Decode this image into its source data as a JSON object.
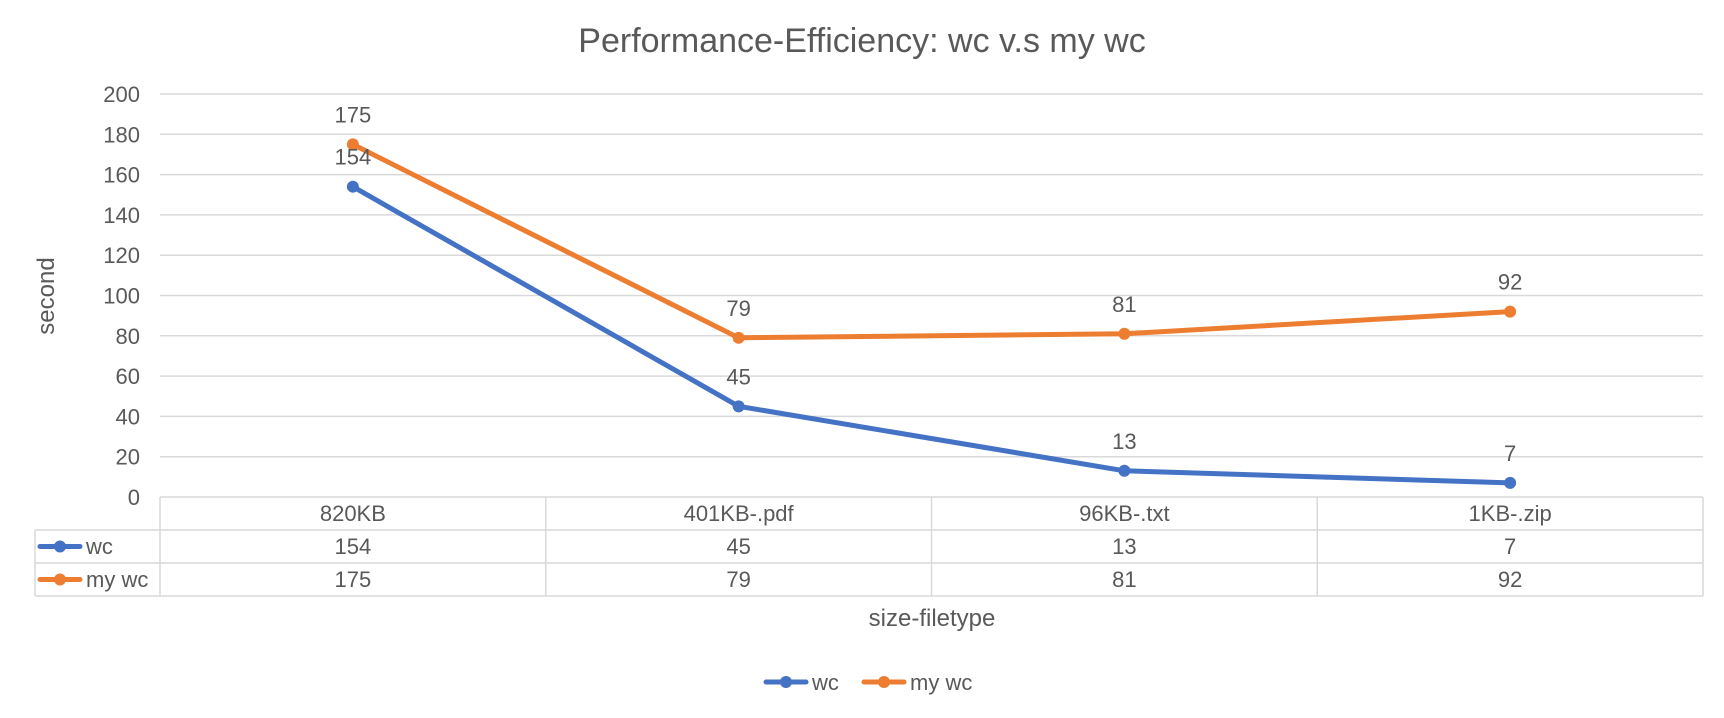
{
  "chart_data": {
    "type": "line",
    "title": "Performance-Efficiency: wc v.s my wc",
    "xlabel": "size-filetype",
    "ylabel": "second",
    "categories": [
      "820KB",
      "401KB-.pdf",
      "96KB-.txt",
      "1KB-.zip"
    ],
    "ylim": [
      0,
      200
    ],
    "yticks": [
      0,
      20,
      40,
      60,
      80,
      100,
      120,
      140,
      160,
      180,
      200
    ],
    "grid": true,
    "data_table": true,
    "legend_position": "bottom",
    "series": [
      {
        "name": "wc",
        "values": [
          154,
          45,
          13,
          7
        ],
        "color": "#4472C4"
      },
      {
        "name": "my wc",
        "values": [
          175,
          79,
          81,
          92
        ],
        "color": "#ED7D31"
      }
    ]
  }
}
